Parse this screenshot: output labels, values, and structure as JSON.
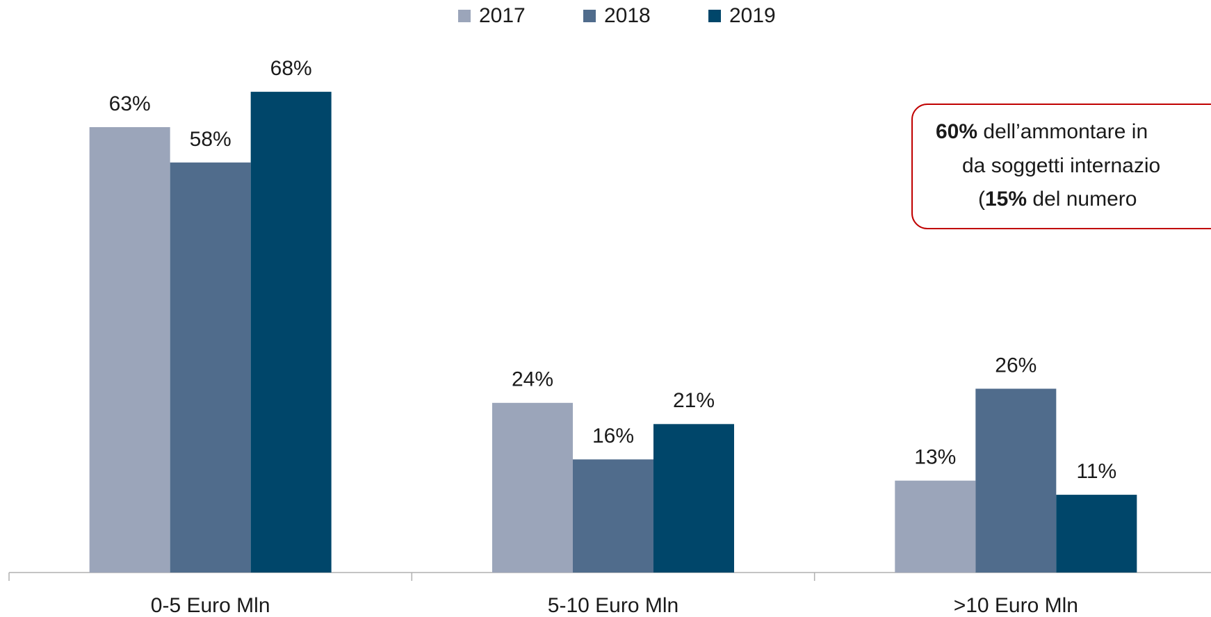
{
  "chart_data": {
    "type": "bar",
    "categories": [
      "0-5 Euro Mln",
      "5-10 Euro Mln",
      ">10 Euro Mln"
    ],
    "series": [
      {
        "name": "2017",
        "color": "#9ba5ba",
        "values": [
          63,
          24,
          13
        ],
        "value_labels": [
          "63%",
          "24%",
          "13%"
        ]
      },
      {
        "name": "2018",
        "color": "#506c8c",
        "values": [
          58,
          16,
          26
        ],
        "value_labels": [
          "58%",
          "16%",
          "26%"
        ]
      },
      {
        "name": "2019",
        "color": "#00466a",
        "values": [
          68,
          21,
          11
        ],
        "value_labels": [
          "68%",
          "21%",
          "11%"
        ]
      }
    ],
    "ylim": [
      0,
      80
    ],
    "legend": "top",
    "annotation_lines": [
      [
        {
          "text": "60%",
          "bold": true
        },
        {
          "text": " dell’ammontare in",
          "bold": false
        }
      ],
      [
        {
          "text": "da soggetti internazio",
          "bold": false
        }
      ],
      [
        {
          "text": "(",
          "bold": false
        },
        {
          "text": "15%",
          "bold": true
        },
        {
          "text": " del numero",
          "bold": false
        }
      ]
    ],
    "annotation_color": "#c00000"
  }
}
